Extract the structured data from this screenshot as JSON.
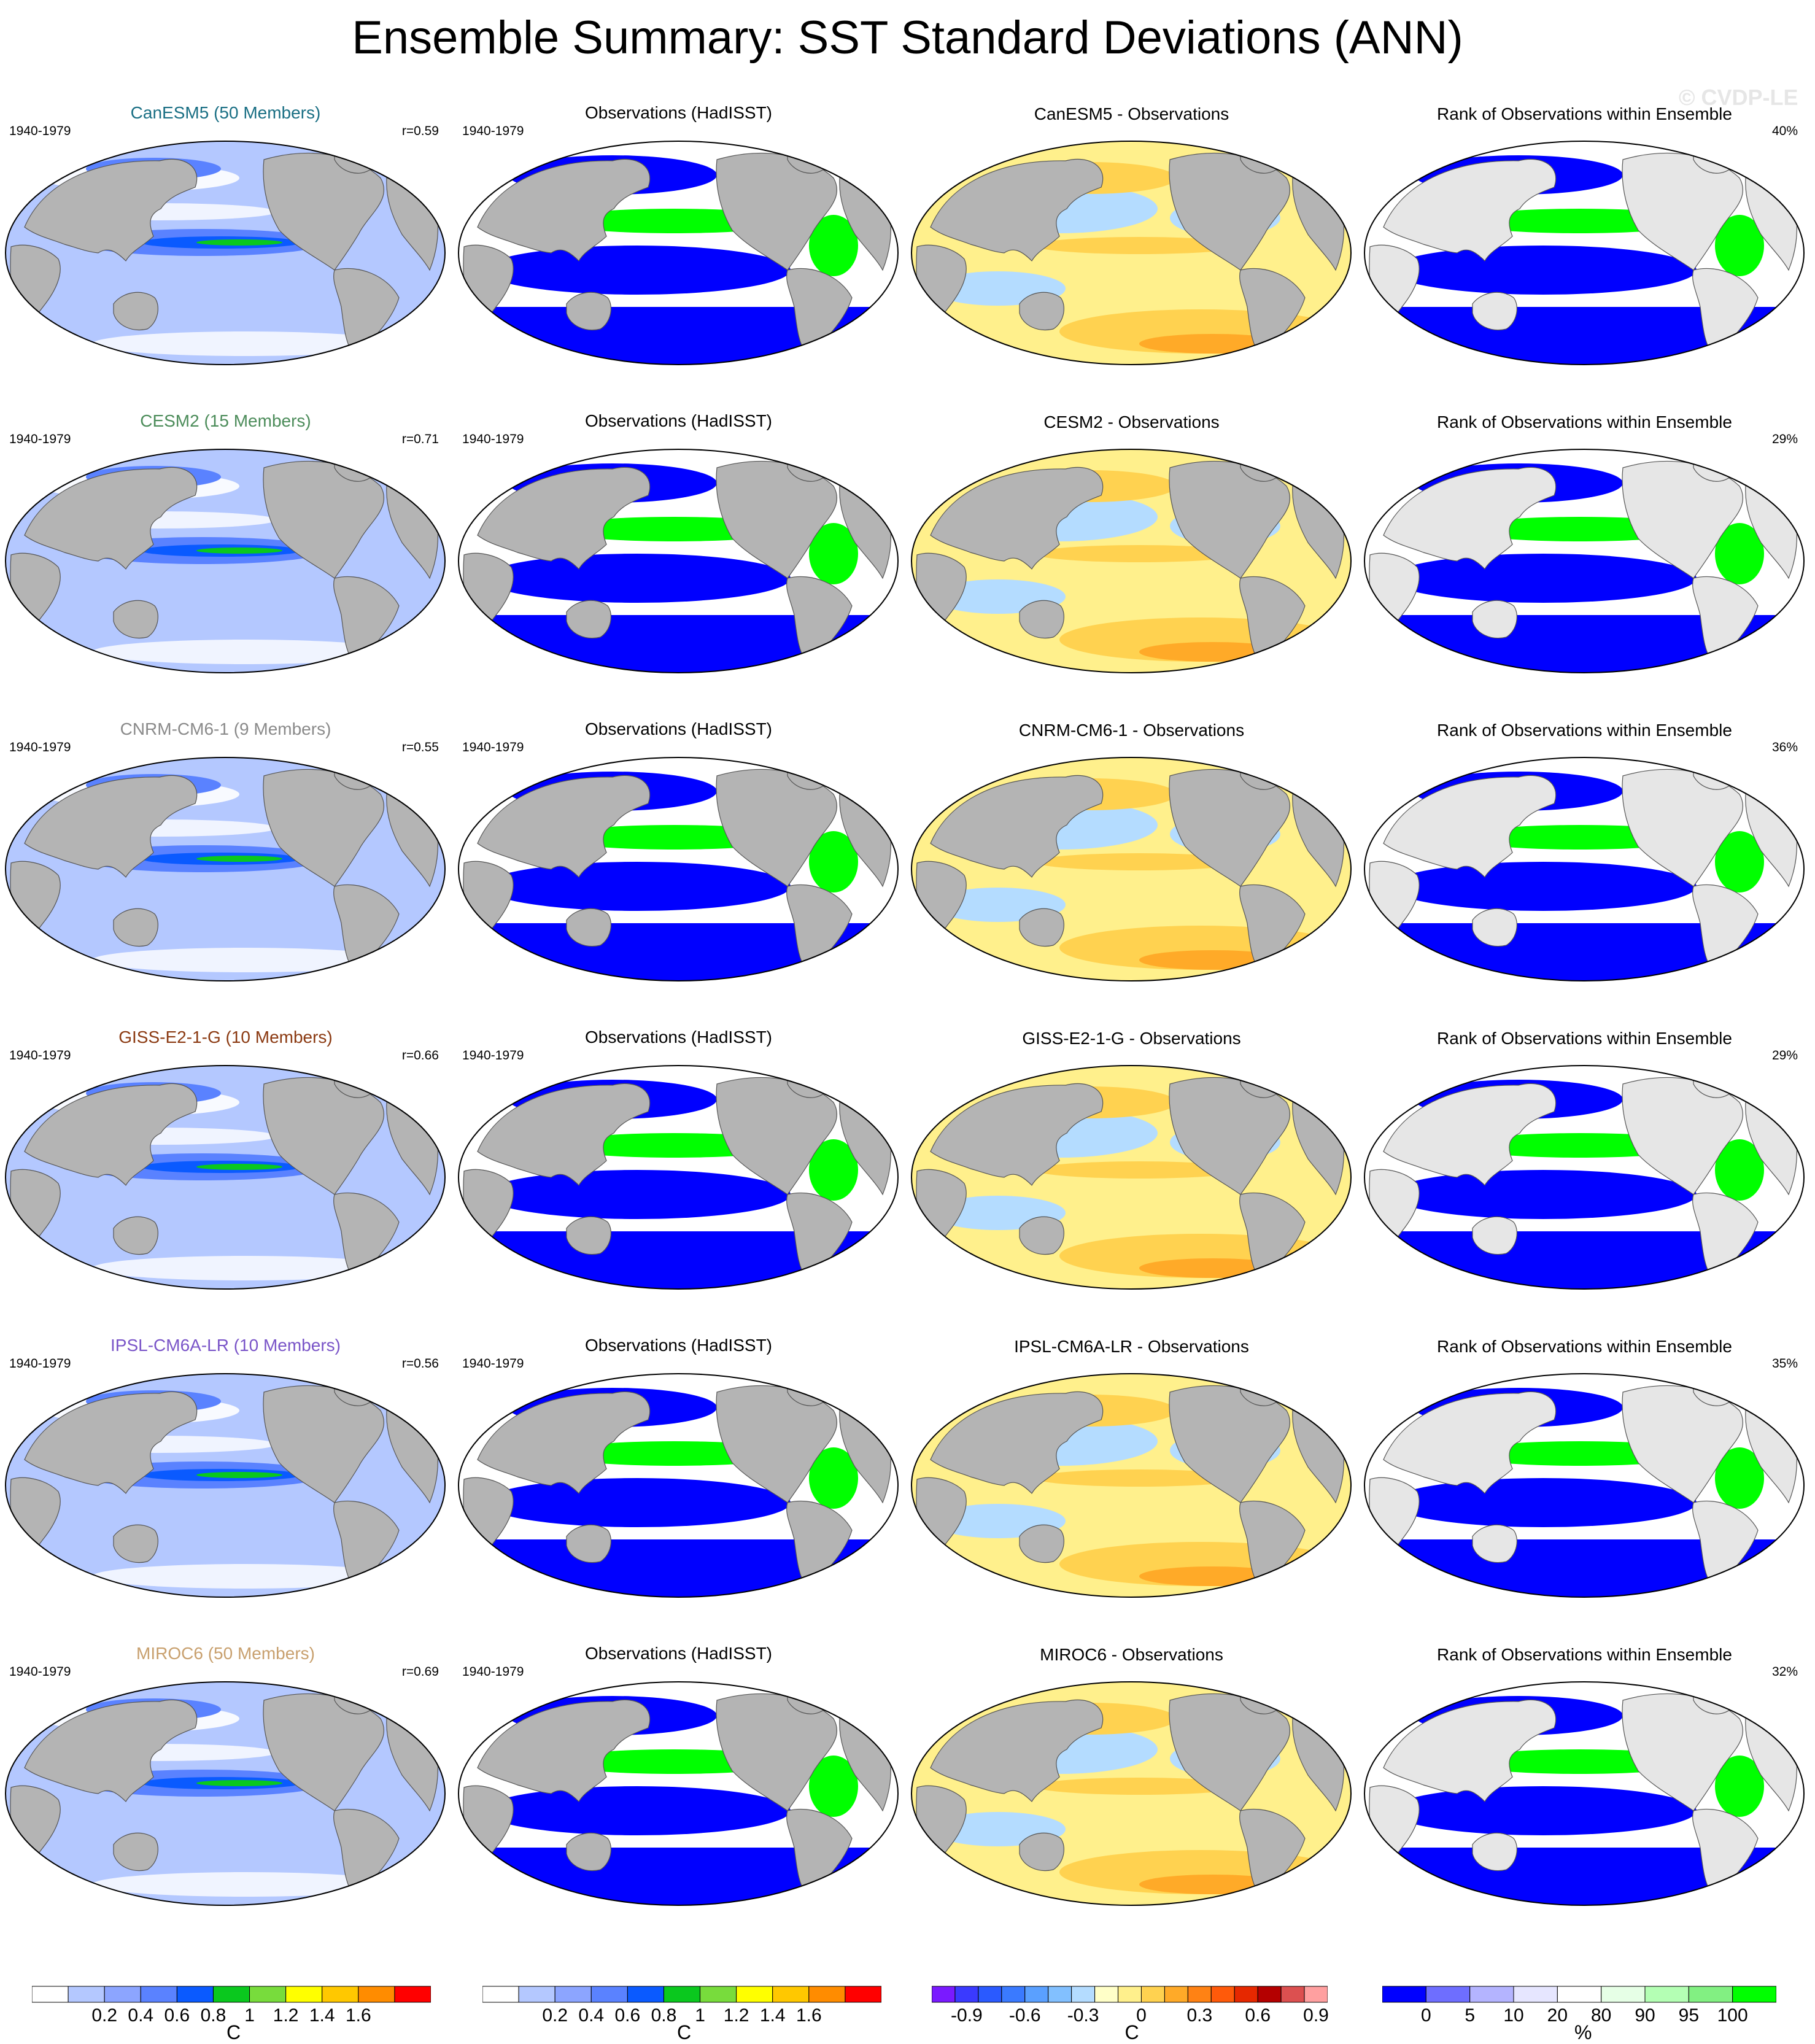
{
  "page_title": "Ensemble Summary: SST Standard Deviations (ANN)",
  "watermark": "© CVDP-LE",
  "period": "1940-1979",
  "obs_title": "Observations (HadISST)",
  "rank_title": "Rank of Observations within Ensemble",
  "rows": [
    {
      "model_title": "CanESM5 (50 Members)",
      "model_color": "#1a6f84",
      "corr": "r=0.59",
      "diff_title": "CanESM5 - Observations",
      "rank_pct": "40%"
    },
    {
      "model_title": "CESM2 (15 Members)",
      "model_color": "#4c8c5a",
      "corr": "r=0.71",
      "diff_title": "CESM2 - Observations",
      "rank_pct": "29%"
    },
    {
      "model_title": "CNRM-CM6-1 (9 Members)",
      "model_color": "#8a8a8a",
      "corr": "r=0.55",
      "diff_title": "CNRM-CM6-1 - Observations",
      "rank_pct": "36%"
    },
    {
      "model_title": "GISS-E2-1-G (10 Members)",
      "model_color": "#8b3a12",
      "corr": "r=0.66",
      "diff_title": "GISS-E2-1-G - Observations",
      "rank_pct": "29%"
    },
    {
      "model_title": "IPSL-CM6A-LR (10 Members)",
      "model_color": "#7a55c8",
      "corr": "r=0.56",
      "diff_title": "IPSL-CM6A-LR - Observations",
      "rank_pct": "35%"
    },
    {
      "model_title": "MIROC6 (50 Members)",
      "model_color": "#c8a06e",
      "corr": "r=0.69",
      "diff_title": "MIROC6 - Observations",
      "rank_pct": "32%"
    }
  ],
  "colorbars": [
    {
      "unit": "C",
      "colors": [
        "#ffffff",
        "#b4c8ff",
        "#8ca5ff",
        "#5a82ff",
        "#0a5aff",
        "#0ac81e",
        "#78dc3c",
        "#ffff00",
        "#ffc800",
        "#ff8c00",
        "#ff0000"
      ],
      "labels": [
        "0.2",
        "0.4",
        "0.6",
        "0.8",
        "1",
        "1.2",
        "1.4",
        "1.6"
      ]
    },
    {
      "unit": "C",
      "colors": [
        "#ffffff",
        "#b4c8ff",
        "#8ca5ff",
        "#5a82ff",
        "#0a5aff",
        "#0ac81e",
        "#78dc3c",
        "#ffff00",
        "#ffc800",
        "#ff8c00",
        "#ff0000"
      ],
      "labels": [
        "0.2",
        "0.4",
        "0.6",
        "0.8",
        "1",
        "1.2",
        "1.4",
        "1.6"
      ]
    },
    {
      "unit": "C",
      "colors": [
        "#7a1aff",
        "#3a3aff",
        "#2a5aff",
        "#3a7aff",
        "#5aa0ff",
        "#82c0ff",
        "#b4dcff",
        "#ffffc8",
        "#fff08c",
        "#ffd250",
        "#ffaa28",
        "#ff8214",
        "#ff5a0a",
        "#e62800",
        "#b40000",
        "#dc5050",
        "#ffa0a0"
      ],
      "labels": [
        "-0.9",
        "-0.6",
        "-0.3",
        "0",
        "0.3",
        "0.6",
        "0.9"
      ]
    },
    {
      "unit": "%",
      "colors": [
        "#0000ff",
        "#6e6eff",
        "#b4b4ff",
        "#e6e6ff",
        "#ffffff",
        "#e6ffe6",
        "#b4ffb4",
        "#82f082",
        "#00ff00"
      ],
      "labels": [
        "0",
        "5",
        "10",
        "20",
        "80",
        "90",
        "95",
        "100"
      ]
    }
  ]
}
